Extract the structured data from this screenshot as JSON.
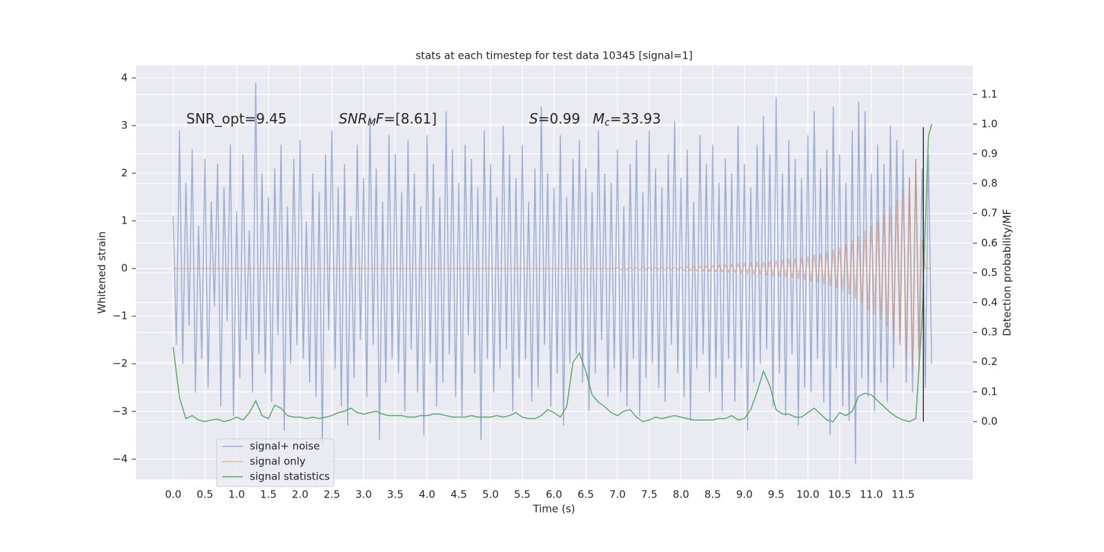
{
  "chart_data": {
    "type": "line",
    "title": "stats at each timestep for test data 10345 [signal=1]",
    "xlabel": "Time (s)",
    "ylabel": "Whitened strain",
    "y2label": "Detection probability/MF",
    "xlim": [
      -0.587,
      12.6
    ],
    "ylim": [
      -4.43,
      4.26
    ],
    "y2lim": [
      -0.195,
      1.197
    ],
    "grid": true,
    "legend": "lower left",
    "xticks": [
      {
        "value": 0,
        "label": "0.0"
      },
      0.5,
      {
        "value": 1,
        "label": "1.0"
      },
      1.5,
      {
        "value": 2,
        "label": "2.0"
      },
      2.5,
      {
        "value": 3,
        "label": "3.0"
      },
      3.5,
      {
        "value": 4,
        "label": "4.0"
      },
      4.5,
      {
        "value": 5,
        "label": "5.0"
      },
      5.5,
      {
        "value": 6,
        "label": "6.0"
      },
      6.5,
      {
        "value": 7,
        "label": "7.0"
      },
      7.5,
      {
        "value": 8,
        "label": "8.0"
      },
      8.5,
      {
        "value": 9,
        "label": "9.0"
      },
      9.5,
      {
        "value": 10,
        "label": "10.0"
      },
      10.5,
      {
        "value": 11,
        "label": "11.0"
      },
      11.5
    ],
    "yticks": [
      {
        "value": -4,
        "label": "−4"
      },
      {
        "value": -3,
        "label": "−3"
      },
      {
        "value": -2,
        "label": "−2"
      },
      {
        "value": -1,
        "label": "−1"
      },
      0,
      1,
      2,
      3,
      4
    ],
    "y2ticks": [
      {
        "value": 0,
        "label": "0.0"
      },
      0.1,
      0.2,
      0.3,
      0.4,
      0.5,
      0.6,
      0.7,
      0.8,
      0.9,
      {
        "value": 1,
        "label": "1.0"
      },
      1.1
    ],
    "annotations": [
      [
        {
          "text": "SNR_opt=9.45",
          "style": "normal"
        }
      ],
      [
        {
          "text": "SNR",
          "style": "italic"
        },
        {
          "text": "M",
          "style": "sub"
        },
        {
          "text": "F",
          "style": "italic"
        },
        {
          "text": "=[8.61]",
          "style": "normal"
        }
      ],
      [
        {
          "text": "S",
          "style": "italic"
        },
        {
          "text": "=0.99",
          "style": "normal"
        }
      ],
      [
        {
          "text": "M",
          "style": "italic"
        },
        {
          "text": "c",
          "style": "sub"
        },
        {
          "text": "=33.93",
          "style": "normal"
        }
      ]
    ],
    "vlines": [
      {
        "x": 11.82,
        "ymin": 0,
        "ymax": 0.99,
        "axis": "y2",
        "color": "#333333"
      }
    ],
    "x": [
      0,
      0.05,
      0.1,
      0.15,
      0.2,
      0.25,
      0.3,
      0.35,
      0.4,
      0.45,
      0.5,
      0.55,
      0.6,
      0.65,
      0.7,
      0.75,
      0.8,
      0.85,
      0.9,
      0.95,
      1,
      1.05,
      1.1,
      1.15,
      1.2,
      1.25,
      1.3,
      1.35,
      1.4,
      1.45,
      1.5,
      1.55,
      1.6,
      1.65,
      1.7,
      1.75,
      1.8,
      1.85,
      1.9,
      1.95,
      2,
      2.05,
      2.1,
      2.15,
      2.2,
      2.25,
      2.3,
      2.35,
      2.4,
      2.45,
      2.5,
      2.55,
      2.6,
      2.65,
      2.7,
      2.75,
      2.8,
      2.85,
      2.9,
      2.95,
      3,
      3.05,
      3.1,
      3.15,
      3.2,
      3.25,
      3.3,
      3.35,
      3.4,
      3.45,
      3.5,
      3.55,
      3.6,
      3.65,
      3.7,
      3.75,
      3.8,
      3.85,
      3.9,
      3.95,
      4,
      4.05,
      4.1,
      4.15,
      4.2,
      4.25,
      4.3,
      4.35,
      4.4,
      4.45,
      4.5,
      4.55,
      4.6,
      4.65,
      4.7,
      4.75,
      4.8,
      4.85,
      4.9,
      4.95,
      5,
      5.05,
      5.1,
      5.15,
      5.2,
      5.25,
      5.3,
      5.35,
      5.4,
      5.45,
      5.5,
      5.55,
      5.6,
      5.65,
      5.7,
      5.75,
      5.8,
      5.85,
      5.9,
      5.95,
      6,
      6.05,
      6.1,
      6.15,
      6.2,
      6.25,
      6.3,
      6.35,
      6.4,
      6.45,
      6.5,
      6.55,
      6.6,
      6.65,
      6.7,
      6.75,
      6.8,
      6.85,
      6.9,
      6.95,
      7,
      7.05,
      7.1,
      7.15,
      7.2,
      7.25,
      7.3,
      7.35,
      7.4,
      7.45,
      7.5,
      7.55,
      7.6,
      7.65,
      7.7,
      7.75,
      7.8,
      7.85,
      7.9,
      7.95,
      8,
      8.05,
      8.1,
      8.15,
      8.2,
      8.25,
      8.3,
      8.35,
      8.4,
      8.45,
      8.5,
      8.55,
      8.6,
      8.65,
      8.7,
      8.75,
      8.8,
      8.85,
      8.9,
      8.95,
      9,
      9.05,
      9.1,
      9.15,
      9.2,
      9.25,
      9.3,
      9.35,
      9.4,
      9.45,
      9.5,
      9.55,
      9.6,
      9.65,
      9.7,
      9.75,
      9.8,
      9.85,
      9.9,
      9.95,
      10,
      10.05,
      10.1,
      10.15,
      10.2,
      10.25,
      10.3,
      10.35,
      10.4,
      10.45,
      10.5,
      10.55,
      10.6,
      10.65,
      10.7,
      10.75,
      10.8,
      10.85,
      10.9,
      10.95,
      11,
      11.05,
      11.1,
      11.15,
      11.2,
      11.25,
      11.3,
      11.35,
      11.4,
      11.45,
      11.5,
      11.55,
      11.6,
      11.65,
      11.7,
      11.75,
      11.8,
      11.85,
      11.9,
      11.95
    ],
    "series": [
      {
        "name": "signal+ noise",
        "color": "#4c72b0",
        "opacity": 0.5,
        "values": [
          1.1,
          -1.6,
          2.9,
          -2.0,
          1.8,
          -1.2,
          2.5,
          -2.6,
          0.9,
          -1.9,
          2.3,
          -2.5,
          1.4,
          -0.8,
          2.2,
          -2.9,
          1.7,
          -1.1,
          2.6,
          -3.1,
          1.2,
          -2.3,
          2.4,
          -1.5,
          0.8,
          -2.6,
          3.9,
          -1.8,
          2.0,
          -2.2,
          1.5,
          -2.8,
          2.1,
          -1.4,
          2.6,
          -3.4,
          1.3,
          -2.0,
          2.3,
          -1.6,
          2.7,
          -1.9,
          1.0,
          -2.4,
          2.0,
          -2.7,
          1.6,
          -3.7,
          2.4,
          -1.3,
          2.9,
          -2.1,
          1.7,
          -2.9,
          2.2,
          -3.3,
          1.1,
          -2.3,
          2.6,
          -1.5,
          1.9,
          -2.7,
          3.2,
          -1.6,
          2.1,
          -3.6,
          1.4,
          -2.4,
          2.8,
          -1.9,
          2.4,
          -2.2,
          1.6,
          -3.0,
          2.7,
          -1.7,
          2.0,
          -2.6,
          1.3,
          -3.5,
          2.8,
          -2.0,
          2.2,
          -2.9,
          1.5,
          -2.4,
          3.3,
          -1.8,
          2.5,
          -2.7,
          1.8,
          -3.1,
          2.6,
          -1.4,
          2.3,
          -2.2,
          1.7,
          -3.6,
          2.9,
          -1.9,
          2.2,
          -2.6,
          1.5,
          -2.1,
          3.0,
          -1.7,
          2.4,
          -3.0,
          1.9,
          -2.3,
          2.6,
          -1.9,
          1.4,
          -2.8,
          2.1,
          -2.5,
          3.4,
          -1.6,
          2.0,
          -2.9,
          1.7,
          -2.2,
          2.8,
          -3.3,
          1.5,
          -2.0,
          2.3,
          -1.8,
          2.7,
          -2.4,
          2.1,
          -3.0,
          1.6,
          -2.2,
          2.9,
          -1.5,
          2.0,
          -2.7,
          1.8,
          -2.1,
          2.5,
          -2.6,
          1.3,
          -2.9,
          2.2,
          -1.9,
          2.7,
          -3.1,
          1.6,
          -2.3,
          2.9,
          -2.0,
          2.1,
          -2.5,
          1.7,
          -2.8,
          2.4,
          -1.6,
          3.1,
          -2.2,
          1.9,
          -2.7,
          2.5,
          -3.2,
          1.4,
          -2.1,
          2.8,
          -1.8,
          2.2,
          -2.6,
          2.6,
          -2.3,
          1.8,
          -3.0,
          2.3,
          -1.9,
          2.0,
          -2.8,
          3.0,
          -2.1,
          2.2,
          -3.4,
          1.7,
          -2.4,
          2.6,
          -2.0,
          3.2,
          -1.7,
          2.4,
          -2.9,
          3.6,
          -2.2,
          2.0,
          -3.1,
          2.7,
          -1.8,
          2.3,
          -3.3,
          1.9,
          -2.5,
          2.8,
          -2.6,
          3.3,
          -1.9,
          2.1,
          -2.8,
          2.5,
          -3.5,
          3.4,
          -2.1,
          2.4,
          -2.9,
          1.8,
          -3.2,
          2.9,
          -4.1,
          3.5,
          -2.3,
          3.3,
          -2.7,
          2.0,
          -3.0,
          2.6,
          -2.4,
          2.2,
          -2.8,
          3.0,
          -2.1,
          2.7,
          -1.6,
          2.5,
          -2.4,
          1.9,
          -2.6,
          2.3,
          -1.7,
          2.1,
          -2.5,
          2.4,
          -2.0
        ]
      },
      {
        "name": "signal only",
        "color": "#dd8452",
        "opacity": 0.5,
        "values": [
          0,
          0,
          0,
          0,
          0,
          0,
          0,
          0,
          0,
          0,
          0,
          0,
          0,
          0,
          0,
          0,
          0,
          0,
          0,
          0,
          0,
          0,
          0,
          0,
          0,
          0,
          0,
          0,
          0,
          0,
          0,
          0,
          0,
          0,
          0,
          0,
          0,
          0,
          0,
          0,
          0,
          0,
          0,
          0,
          0,
          0,
          0,
          0,
          0,
          0,
          0,
          0,
          0,
          0,
          0,
          0,
          0,
          0,
          0,
          0,
          0,
          0,
          0,
          0,
          0,
          0,
          0,
          0,
          0,
          0,
          0,
          0,
          0,
          0,
          0,
          0,
          0,
          0,
          0,
          0,
          0,
          0,
          0,
          0,
          0,
          0,
          0,
          0,
          0,
          0,
          0,
          0,
          0,
          0,
          0,
          0,
          0,
          0,
          0,
          0,
          0,
          0,
          0,
          0,
          0,
          0,
          0,
          0,
          0,
          0,
          0,
          0,
          0,
          0,
          0,
          0,
          0,
          0,
          0,
          0,
          0.01,
          -0.01,
          0.01,
          -0.01,
          0.01,
          -0.01,
          0.01,
          -0.01,
          0.01,
          -0.01,
          0.01,
          -0.01,
          0.01,
          -0.01,
          0.01,
          -0.01,
          0.01,
          -0.01,
          0.01,
          -0.01,
          0.02,
          -0.02,
          0.02,
          -0.02,
          0.02,
          -0.02,
          0.02,
          -0.02,
          0.02,
          -0.02,
          0.02,
          -0.02,
          0.02,
          -0.02,
          0.02,
          -0.02,
          0.02,
          -0.02,
          0.02,
          -0.02,
          0.03,
          -0.03,
          0.04,
          -0.04,
          0.04,
          -0.05,
          0.05,
          -0.05,
          0.06,
          -0.06,
          0.06,
          -0.07,
          0.07,
          -0.08,
          0.08,
          -0.08,
          0.09,
          -0.09,
          0.1,
          -0.1,
          0.11,
          -0.11,
          0.12,
          -0.12,
          0.13,
          -0.13,
          0.14,
          -0.15,
          0.15,
          -0.16,
          0.17,
          -0.17,
          0.18,
          -0.19,
          0.2,
          -0.21,
          0.22,
          -0.23,
          0.24,
          -0.25,
          0.26,
          -0.27,
          0.29,
          -0.3,
          0.32,
          -0.34,
          0.36,
          -0.38,
          0.4,
          -0.42,
          0.45,
          -0.48,
          0.51,
          -0.55,
          0.59,
          -0.63,
          0.68,
          -0.74,
          0.8,
          -0.88,
          0.9,
          -0.96,
          1.02,
          -1.08,
          1.15,
          -1.22,
          1.3,
          -1.38,
          1.46,
          -1.55,
          1.65,
          -1.78,
          1.92,
          -2.1,
          2.3,
          -2.2,
          0.6,
          0,
          0,
          0
        ]
      },
      {
        "name": "signal statistics",
        "color": "#55a868",
        "opacity": 1,
        "axis": "y2",
        "x": [
          0,
          0.1,
          0.2,
          0.3,
          0.4,
          0.5,
          0.6,
          0.7,
          0.8,
          0.9,
          1,
          1.1,
          1.2,
          1.3,
          1.4,
          1.5,
          1.6,
          1.7,
          1.8,
          1.9,
          2,
          2.1,
          2.2,
          2.3,
          2.4,
          2.5,
          2.6,
          2.7,
          2.8,
          2.9,
          3,
          3.1,
          3.2,
          3.3,
          3.4,
          3.5,
          3.6,
          3.7,
          3.8,
          3.9,
          4,
          4.1,
          4.2,
          4.3,
          4.4,
          4.5,
          4.6,
          4.7,
          4.8,
          4.9,
          5,
          5.1,
          5.2,
          5.3,
          5.4,
          5.5,
          5.6,
          5.7,
          5.8,
          5.9,
          6,
          6.1,
          6.2,
          6.3,
          6.4,
          6.5,
          6.6,
          6.7,
          6.8,
          6.9,
          7,
          7.1,
          7.2,
          7.3,
          7.4,
          7.5,
          7.6,
          7.7,
          7.8,
          7.9,
          8,
          8.1,
          8.2,
          8.3,
          8.4,
          8.5,
          8.6,
          8.7,
          8.8,
          8.9,
          9,
          9.1,
          9.2,
          9.3,
          9.4,
          9.5,
          9.6,
          9.7,
          9.8,
          9.9,
          10,
          10.1,
          10.2,
          10.3,
          10.4,
          10.5,
          10.6,
          10.7,
          10.8,
          10.9,
          11,
          11.1,
          11.2,
          11.3,
          11.4,
          11.5,
          11.6,
          11.7,
          11.8,
          11.9,
          11.95
        ],
        "values": [
          0.25,
          0.08,
          0.01,
          0.02,
          0.005,
          0.0,
          0.005,
          0.008,
          0.0,
          0.005,
          0.015,
          0.005,
          0.03,
          0.07,
          0.02,
          0.01,
          0.055,
          0.045,
          0.02,
          0.015,
          0.015,
          0.01,
          0.015,
          0.01,
          0.015,
          0.02,
          0.03,
          0.035,
          0.045,
          0.03,
          0.025,
          0.03,
          0.035,
          0.025,
          0.02,
          0.02,
          0.02,
          0.015,
          0.015,
          0.02,
          0.02,
          0.025,
          0.025,
          0.02,
          0.015,
          0.015,
          0.015,
          0.02,
          0.015,
          0.015,
          0.015,
          0.02,
          0.015,
          0.02,
          0.03,
          0.015,
          0.01,
          0.01,
          0.02,
          0.04,
          0.03,
          0.015,
          0.05,
          0.2,
          0.23,
          0.17,
          0.09,
          0.065,
          0.05,
          0.03,
          0.02,
          0.035,
          0.04,
          0.015,
          0.0,
          0.005,
          0.015,
          0.01,
          0.015,
          0.02,
          0.015,
          0.01,
          0.005,
          0.005,
          0.005,
          0.005,
          0.01,
          0.01,
          0.02,
          0.005,
          0.01,
          0.04,
          0.1,
          0.17,
          0.12,
          0.04,
          0.025,
          0.025,
          0.015,
          0.015,
          0.03,
          0.045,
          0.025,
          0.005,
          0.0,
          0.03,
          0.02,
          0.035,
          0.085,
          0.095,
          0.09,
          0.07,
          0.05,
          0.03,
          0.015,
          0.005,
          0.0,
          0.01,
          0.35,
          0.96,
          1.0
        ]
      }
    ]
  }
}
